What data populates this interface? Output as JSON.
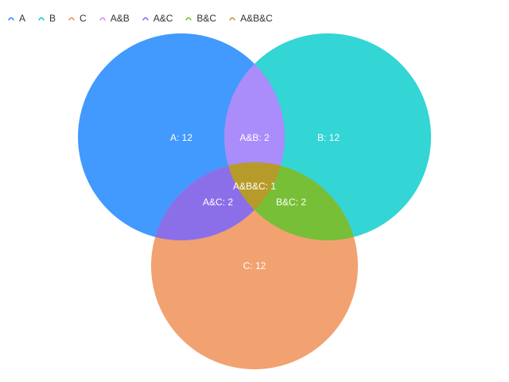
{
  "chart_data": {
    "type": "venn",
    "legend_position": "top-left",
    "sets": [
      {
        "name": "A",
        "label": "A: 12",
        "value": 12,
        "color": "#1783FF"
      },
      {
        "name": "B",
        "label": "B: 12",
        "value": 12,
        "color": "#00C9C9"
      },
      {
        "name": "C",
        "label": "C: 12",
        "value": 12,
        "color": "#F0884D"
      }
    ],
    "intersections": [
      {
        "name": "A&B",
        "sets": [
          "A",
          "B"
        ],
        "label": "A&B: 2",
        "value": 2,
        "color": "#D580FF"
      },
      {
        "name": "A&C",
        "sets": [
          "A",
          "C"
        ],
        "label": "A&C: 2",
        "value": 2,
        "color": "#7863FF"
      },
      {
        "name": "B&C",
        "sets": [
          "B",
          "C"
        ],
        "label": "B&C: 2",
        "value": 2,
        "color": "#60C42D"
      },
      {
        "name": "A&B&C",
        "sets": [
          "A",
          "B",
          "C"
        ],
        "label": "A&B&C: 1",
        "value": 1,
        "color": "#BD8F24"
      }
    ]
  }
}
